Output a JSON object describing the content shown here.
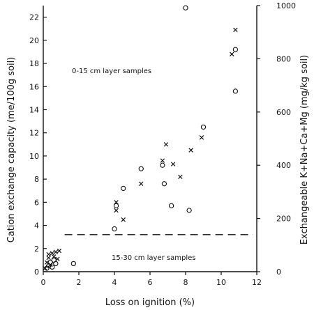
{
  "chart_data": {
    "type": "scatter",
    "title": "",
    "xlabel": "Loss on ignition (%)",
    "ylabel": "Cation exchange capacity (me/100g soil)",
    "y2label": "Exchangeable K+Na+Ca+Mg (mg/kg soil)",
    "xlim": [
      0,
      12
    ],
    "ylim": [
      0,
      23
    ],
    "y2lim": [
      0,
      1000
    ],
    "x_ticks": [
      0,
      2,
      4,
      6,
      8,
      10,
      12
    ],
    "y_ticks": [
      0,
      2,
      4,
      6,
      8,
      10,
      12,
      14,
      16,
      18,
      20,
      22
    ],
    "y2_ticks": [
      0,
      200,
      400,
      600,
      800,
      1000
    ],
    "grid": false,
    "annotations": {
      "upper": "0-15 cm layer samples",
      "lower": "15-30 cm layer samples"
    },
    "divider_y": 3.2,
    "series": [
      {
        "marker": "circle",
        "points": [
          [
            0.2,
            0.3
          ],
          [
            0.3,
            0.5
          ],
          [
            0.4,
            0.8
          ],
          [
            0.5,
            0.4
          ],
          [
            0.6,
            1.0
          ],
          [
            0.7,
            0.7
          ],
          [
            1.7,
            0.7
          ],
          [
            4.0,
            3.7
          ],
          [
            4.1,
            5.7
          ],
          [
            4.5,
            7.2
          ],
          [
            5.5,
            8.9
          ],
          [
            6.7,
            9.2
          ],
          [
            6.8,
            7.6
          ],
          [
            7.2,
            5.7
          ],
          [
            8.2,
            5.3
          ],
          [
            8.0,
            22.8
          ],
          [
            9.0,
            12.5
          ],
          [
            10.8,
            19.2
          ],
          [
            10.8,
            15.6
          ]
        ]
      },
      {
        "marker": "cross",
        "points": [
          [
            0.1,
            0.3
          ],
          [
            0.2,
            0.8
          ],
          [
            0.3,
            1.2
          ],
          [
            0.3,
            1.5
          ],
          [
            0.4,
            0.6
          ],
          [
            0.5,
            1.6
          ],
          [
            0.6,
            1.3
          ],
          [
            0.7,
            1.7
          ],
          [
            0.8,
            1.1
          ],
          [
            0.9,
            1.8
          ],
          [
            4.1,
            6.0
          ],
          [
            4.1,
            5.3
          ],
          [
            4.5,
            4.5
          ],
          [
            5.5,
            7.6
          ],
          [
            6.7,
            9.6
          ],
          [
            6.9,
            11.0
          ],
          [
            7.3,
            9.3
          ],
          [
            7.7,
            8.2
          ],
          [
            8.3,
            10.5
          ],
          [
            8.9,
            11.6
          ],
          [
            10.6,
            18.8
          ],
          [
            10.8,
            20.9
          ]
        ]
      }
    ]
  }
}
